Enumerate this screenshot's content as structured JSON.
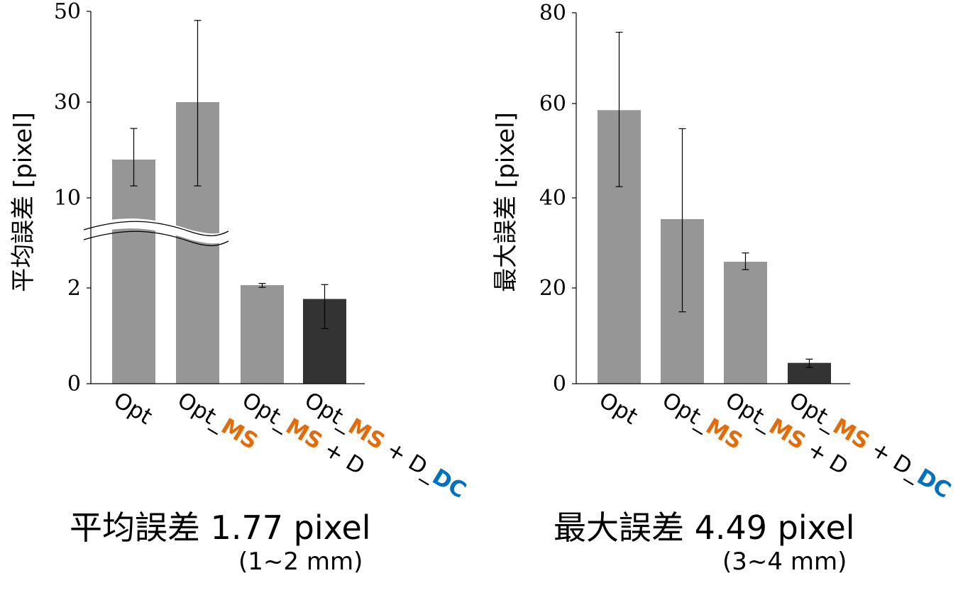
{
  "chart_data": [
    {
      "type": "bar",
      "ylabel": "平均誤差 [pixel]",
      "axis_break": true,
      "y_tick_labels": [
        "0",
        "2",
        "10",
        "30",
        "50"
      ],
      "categories": [
        {
          "parts": [
            {
              "text": "Opt",
              "style": "normal"
            }
          ]
        },
        {
          "parts": [
            {
              "text": "Opt_",
              "style": "normal"
            },
            {
              "text": "MS",
              "style": "ms"
            }
          ]
        },
        {
          "parts": [
            {
              "text": "Opt_",
              "style": "normal"
            },
            {
              "text": "MS",
              "style": "ms"
            },
            {
              "text": " + D",
              "style": "normal"
            }
          ]
        },
        {
          "parts": [
            {
              "text": "Opt_",
              "style": "normal"
            },
            {
              "text": "MS",
              "style": "ms"
            },
            {
              "text": " + D_",
              "style": "normal"
            },
            {
              "text": "DC",
              "style": "dc"
            }
          ]
        }
      ],
      "values": [
        18,
        30,
        2.25,
        1.77
      ],
      "error_low": [
        12.5,
        12.5,
        2.05,
        1.15
      ],
      "error_high": [
        24.5,
        48,
        2.4,
        2.3
      ],
      "bar_colors": [
        "#969696",
        "#969696",
        "#969696",
        "#333333"
      ],
      "summary_title": "平均誤差 1.77 pixel",
      "summary_note": "(1~2 mm)"
    },
    {
      "type": "bar",
      "ylabel": "最大誤差 [pixel]",
      "axis_break": false,
      "y_tick_labels": [
        "0",
        "20",
        "40",
        "60",
        "80"
      ],
      "ylim": [
        0,
        80
      ],
      "categories": [
        {
          "parts": [
            {
              "text": "Opt",
              "style": "normal"
            }
          ]
        },
        {
          "parts": [
            {
              "text": "Opt_",
              "style": "normal"
            },
            {
              "text": "MS",
              "style": "ms"
            }
          ]
        },
        {
          "parts": [
            {
              "text": "Opt_",
              "style": "normal"
            },
            {
              "text": "MS",
              "style": "ms"
            },
            {
              "text": " + D",
              "style": "normal"
            }
          ]
        },
        {
          "parts": [
            {
              "text": "Opt_",
              "style": "normal"
            },
            {
              "text": "MS",
              "style": "ms"
            },
            {
              "text": " + D_",
              "style": "normal"
            },
            {
              "text": "DC",
              "style": "dc"
            }
          ]
        }
      ],
      "values": [
        59,
        35.5,
        26.3,
        4.49
      ],
      "error_low": [
        42.5,
        15.5,
        24.6,
        3.5
      ],
      "error_high": [
        75.8,
        55,
        28.2,
        5.3
      ],
      "bar_colors": [
        "#969696",
        "#969696",
        "#969696",
        "#333333"
      ],
      "summary_title": "最大誤差 4.49 pixel",
      "summary_note": "(3~4 mm)"
    }
  ]
}
